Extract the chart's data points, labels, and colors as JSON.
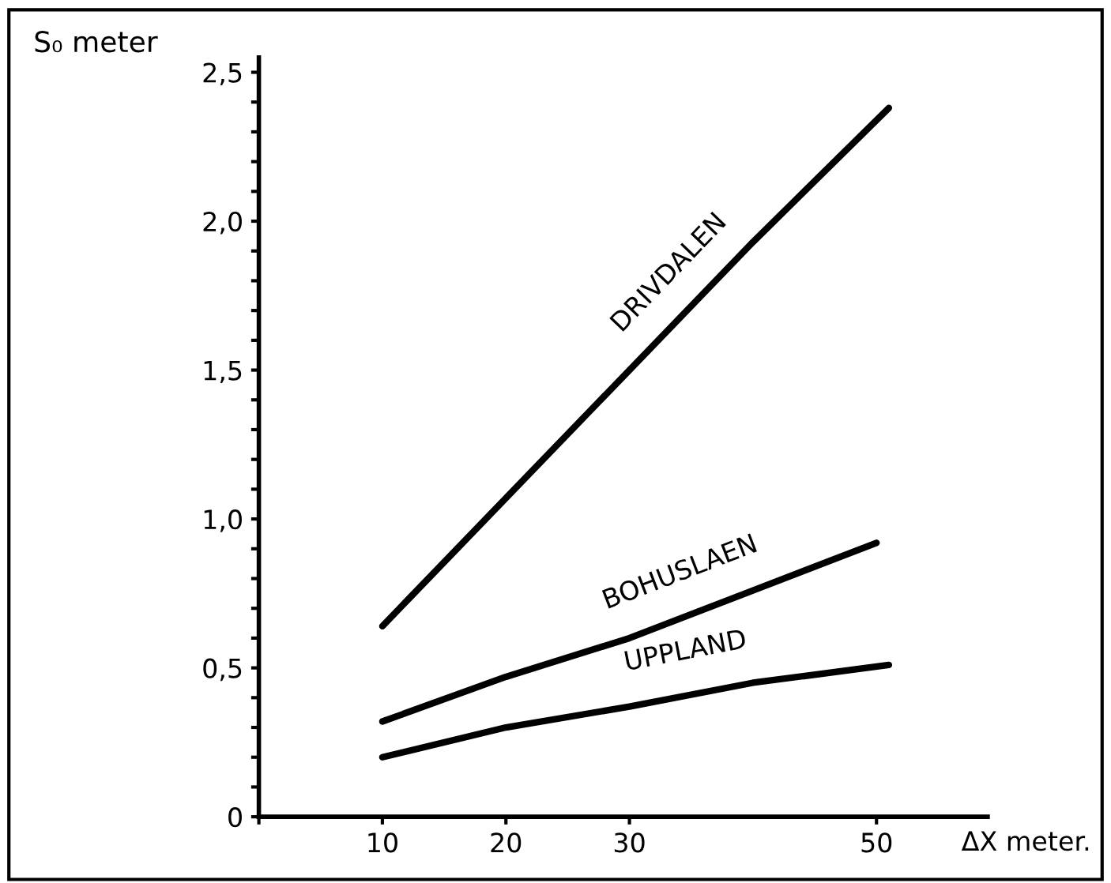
{
  "chart_data": {
    "type": "line",
    "ylabel": "S₀ meter",
    "xlabel": "ΔX meter.",
    "series": [
      {
        "name": "DRIVDALEN",
        "color": "#000000",
        "x": [
          10,
          20,
          30,
          40,
          51
        ],
        "values": [
          0.64,
          1.07,
          1.5,
          1.93,
          2.38
        ]
      },
      {
        "name": "BOHUSLAEN",
        "color": "#000000",
        "x": [
          10,
          20,
          30,
          40,
          50
        ],
        "values": [
          0.32,
          0.47,
          0.6,
          0.76,
          0.92
        ]
      },
      {
        "name": "UPPLAND",
        "color": "#000000",
        "x": [
          10,
          20,
          30,
          40,
          51
        ],
        "values": [
          0.2,
          0.3,
          0.37,
          0.45,
          0.51
        ]
      }
    ],
    "xlim": [
      0,
      59
    ],
    "ylim": [
      0,
      2.55
    ],
    "xticks": [
      {
        "value": 0,
        "label": null
      },
      10,
      20,
      30,
      50
    ],
    "yticks": [
      {
        "value": 0,
        "label": "0"
      },
      {
        "value": 0.1,
        "label": null
      },
      {
        "value": 0.2,
        "label": null
      },
      {
        "value": 0.3,
        "label": null
      },
      {
        "value": 0.4,
        "label": null
      },
      {
        "value": 0.5,
        "label": "0,5"
      },
      {
        "value": 0.6,
        "label": null
      },
      {
        "value": 0.7,
        "label": null
      },
      {
        "value": 0.8,
        "label": null
      },
      {
        "value": 0.9,
        "label": null
      },
      {
        "value": 1.0,
        "label": "1,0"
      },
      {
        "value": 1.1,
        "label": null
      },
      {
        "value": 1.2,
        "label": null
      },
      {
        "value": 1.3,
        "label": null
      },
      {
        "value": 1.4,
        "label": null
      },
      {
        "value": 1.5,
        "label": "1,5"
      },
      {
        "value": 1.6,
        "label": null
      },
      {
        "value": 1.7,
        "label": null
      },
      {
        "value": 1.8,
        "label": null
      },
      {
        "value": 1.9,
        "label": null
      },
      {
        "value": 2.0,
        "label": "2,0"
      },
      {
        "value": 2.1,
        "label": null
      },
      {
        "value": 2.2,
        "label": null
      },
      {
        "value": 2.3,
        "label": null
      },
      {
        "value": 2.4,
        "label": null
      },
      {
        "value": 2.5,
        "label": "2,5"
      }
    ],
    "grid": false,
    "legend": false,
    "marker": "none",
    "line_style": "solid"
  }
}
